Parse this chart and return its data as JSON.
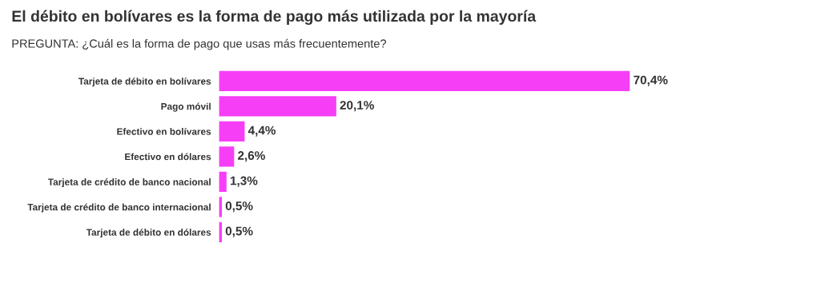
{
  "chart_data": {
    "type": "bar",
    "orientation": "horizontal",
    "title": "El débito en bolívares es la forma de pago más utilizada por la mayoría",
    "subtitle": "PREGUNTA: ¿Cuál es la forma de pago que usas más frecuentemente?",
    "categories": [
      "Tarjeta de débito en bolívares",
      "Pago móvil",
      "Efectivo en bolívares",
      "Efectivo en dólares",
      "Tarjeta de crédito de banco nacional",
      "Tarjeta de crédito de banco internacional",
      "Tarjeta de débito en dólares"
    ],
    "values": [
      70.4,
      20.1,
      4.4,
      2.6,
      1.3,
      0.5,
      0.5
    ],
    "value_labels": [
      "70,4%",
      "20,1%",
      "4,4%",
      "2,6%",
      "1,3%",
      "0,5%",
      "0,5%"
    ],
    "color": "#f73ef7",
    "tick_labels": "y",
    "grid": false,
    "legend": false
  }
}
